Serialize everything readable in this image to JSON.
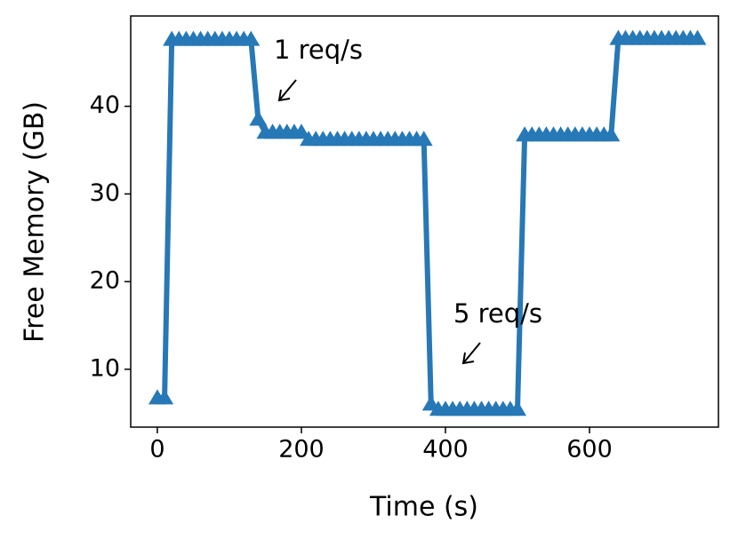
{
  "chart_data": {
    "type": "line",
    "xlabel": "Time (s)",
    "ylabel": "Free Memory (GB)",
    "x": [
      0,
      10,
      20,
      30,
      40,
      50,
      60,
      70,
      80,
      90,
      100,
      110,
      120,
      130,
      140,
      150,
      160,
      170,
      180,
      190,
      200,
      210,
      220,
      230,
      240,
      250,
      260,
      270,
      280,
      290,
      300,
      310,
      320,
      330,
      340,
      350,
      360,
      370,
      380,
      390,
      400,
      410,
      420,
      430,
      440,
      450,
      460,
      470,
      480,
      490,
      500,
      510,
      520,
      530,
      540,
      550,
      560,
      570,
      580,
      590,
      600,
      610,
      620,
      630,
      640,
      650,
      660,
      670,
      680,
      690,
      700,
      710,
      720,
      730,
      740,
      750
    ],
    "series": [
      {
        "color": "#2778b6",
        "marker": "triangle",
        "values": [
          6.7,
          6.7,
          47.6,
          47.6,
          47.6,
          47.6,
          47.6,
          47.6,
          47.6,
          47.6,
          47.6,
          47.6,
          47.6,
          47.6,
          38.5,
          37,
          37,
          37,
          37,
          37,
          37,
          36.2,
          36.2,
          36.2,
          36.2,
          36.2,
          36.2,
          36.2,
          36.2,
          36.2,
          36.2,
          36.2,
          36.2,
          36.2,
          36.2,
          36.2,
          36.2,
          36.2,
          6,
          5.4,
          5.4,
          5.4,
          5.4,
          5.4,
          5.4,
          5.4,
          5.4,
          5.4,
          5.4,
          5.4,
          5.4,
          36.7,
          36.7,
          36.7,
          36.7,
          36.7,
          36.7,
          36.7,
          36.7,
          36.7,
          36.7,
          36.7,
          36.7,
          36.7,
          47.7,
          47.7,
          47.7,
          47.7,
          47.7,
          47.7,
          47.7,
          47.7,
          47.7,
          47.7,
          47.7,
          47.7
        ]
      }
    ],
    "annotations": [
      "1 req/s",
      "5 req/s"
    ],
    "xlim": [
      -37,
      779
    ],
    "xticks": [
      0,
      200,
      400,
      600
    ],
    "ylim": [
      3.4,
      50.3
    ],
    "yticks": [
      10,
      20,
      30,
      40
    ]
  }
}
